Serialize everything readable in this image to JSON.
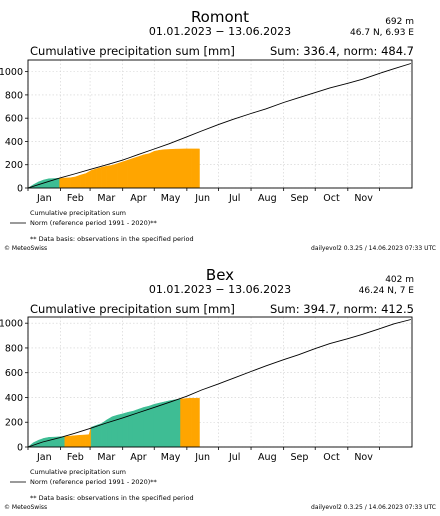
{
  "months": [
    "Jan",
    "Feb",
    "Mar",
    "Apr",
    "May",
    "Jun",
    "Jul",
    "Aug",
    "Sep",
    "Oct",
    "Nov"
  ],
  "legend": {
    "line1": "Cumulative precipitation sum",
    "line2": "Norm (reference period 1991 - 2020)**",
    "note": "** Data basis: observations in the specified period"
  },
  "footer": {
    "left": "© MeteoSwiss",
    "right": "dailyevol2 0.3.25 / 14.06.2023 07:33 UTC"
  },
  "colors": {
    "above_norm": "#3ebd94",
    "below_norm": "#ffa500",
    "norm_line": "#000000"
  },
  "chart_data": [
    {
      "type": "area",
      "station": "Romont",
      "period": "01.01.2023 − 13.06.2023",
      "elevation": "692 m",
      "coords": "46.7 N, 6.93 E",
      "title": "Cumulative precipitation sum [mm]",
      "summary": "Sum: 336.4, norm: 484.7",
      "ylim": [
        0,
        1100
      ],
      "yticks": [
        0,
        200,
        400,
        600,
        800,
        1000
      ],
      "norm_line": {
        "x_day": [
          1,
          15,
          31,
          45,
          60,
          74,
          91,
          105,
          121,
          135,
          152,
          166,
          182,
          196,
          213,
          227,
          244,
          258,
          274,
          288,
          305,
          319,
          335,
          349,
          365
        ],
        "y": [
          0,
          40,
          85,
          120,
          160,
          195,
          240,
          285,
          335,
          380,
          440,
          490,
          545,
          590,
          640,
          680,
          735,
          775,
          820,
          860,
          900,
          935,
          985,
          1025,
          1070
        ]
      },
      "observed": {
        "x_day": [
          1,
          6,
          11,
          16,
          21,
          26,
          31,
          36,
          41,
          46,
          51,
          56,
          61,
          66,
          71,
          76,
          81,
          86,
          91,
          96,
          101,
          106,
          111,
          116,
          121,
          126,
          131,
          136,
          141,
          146,
          151,
          156,
          161,
          164
        ],
        "y": [
          0,
          28,
          52,
          70,
          80,
          82,
          84,
          86,
          88,
          95,
          112,
          125,
          150,
          165,
          178,
          188,
          195,
          210,
          225,
          240,
          255,
          270,
          285,
          295,
          315,
          325,
          330,
          332,
          334,
          335,
          336,
          336,
          336,
          336.4
        ]
      }
    },
    {
      "type": "area",
      "station": "Bex",
      "period": "01.01.2023 − 13.06.2023",
      "elevation": "402 m",
      "coords": "46.24 N, 7 E",
      "title": "Cumulative precipitation sum [mm]",
      "summary": "Sum: 394.7, norm: 412.5",
      "ylim": [
        0,
        1050
      ],
      "yticks": [
        0,
        200,
        400,
        600,
        800,
        1000
      ],
      "norm_line": {
        "x_day": [
          1,
          15,
          31,
          45,
          60,
          74,
          91,
          105,
          121,
          135,
          152,
          166,
          182,
          196,
          213,
          227,
          244,
          258,
          274,
          288,
          305,
          319,
          335,
          349,
          365
        ],
        "y": [
          0,
          40,
          75,
          110,
          150,
          190,
          235,
          275,
          320,
          360,
          410,
          460,
          510,
          555,
          610,
          655,
          705,
          745,
          795,
          835,
          875,
          910,
          955,
          995,
          1030
        ]
      },
      "observed": {
        "x_day": [
          1,
          6,
          11,
          16,
          21,
          26,
          31,
          36,
          41,
          46,
          51,
          56,
          59,
          61,
          66,
          71,
          76,
          81,
          86,
          91,
          96,
          101,
          106,
          111,
          116,
          121,
          126,
          131,
          136,
          141,
          146,
          151,
          156,
          161,
          164
        ],
        "y": [
          0,
          35,
          55,
          70,
          78,
          80,
          82,
          84,
          88,
          92,
          95,
          98,
          100,
          160,
          175,
          190,
          220,
          245,
          258,
          268,
          280,
          290,
          305,
          320,
          330,
          345,
          355,
          365,
          375,
          382,
          388,
          392,
          394,
          394.5,
          394.7
        ]
      }
    }
  ]
}
